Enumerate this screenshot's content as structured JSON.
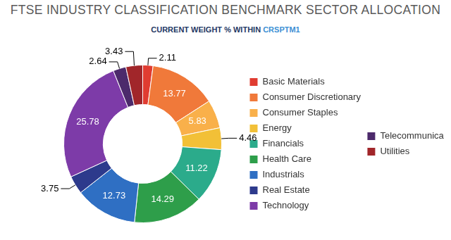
{
  "chart_data": {
    "type": "doughnut",
    "title": "FTSE INDUSTRY CLASSIFICATION BENCHMARK SECTOR ALLOCATION",
    "subtitle": "CURRENT WEIGHT % WITHIN CRSPTM1",
    "categories": [
      "Basic Materials",
      "Consumer Discretionary",
      "Consumer Staples",
      "Energy",
      "Financials",
      "Health Care",
      "Industrials",
      "Real Estate",
      "Technology",
      "Telecommunications",
      "Utilities"
    ],
    "values": [
      2.11,
      13.77,
      5.83,
      4.46,
      11.22,
      14.29,
      12.73,
      3.75,
      25.78,
      2.64,
      3.43
    ],
    "colors": [
      "#e03c31",
      "#f0793a",
      "#f9b04a",
      "#f2c037",
      "#2bab8b",
      "#2e9e4a",
      "#2f6fc3",
      "#2d3a8c",
      "#7d3ba8",
      "#4c2a6b",
      "#a1262a"
    ],
    "data_labels": true,
    "legend": "right"
  }
}
